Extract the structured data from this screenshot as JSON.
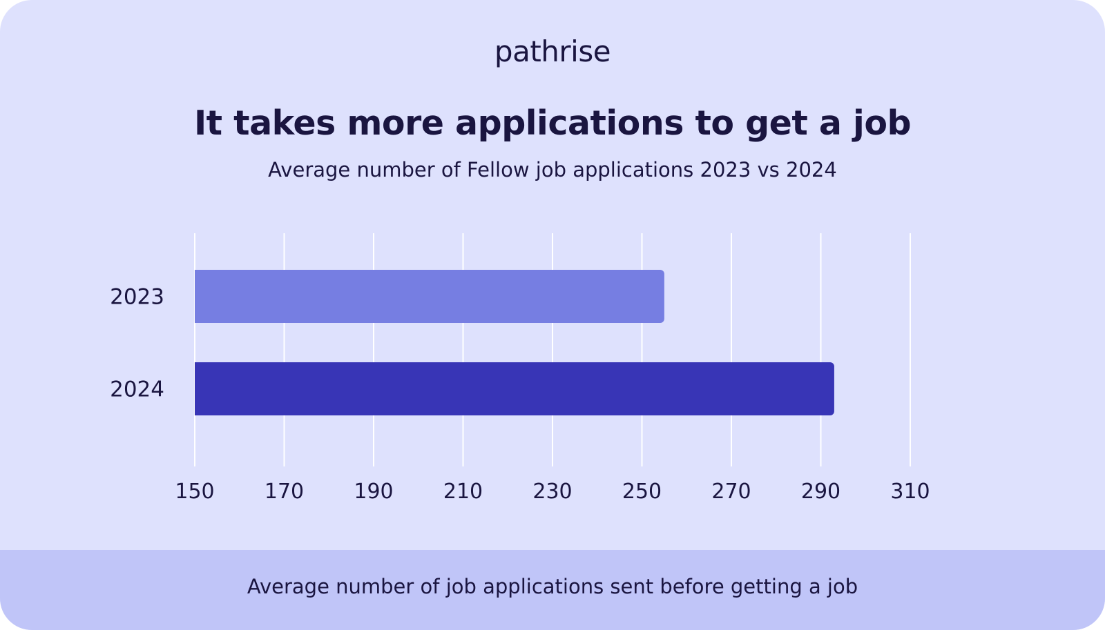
{
  "brand": {
    "logo_text": "pathrise"
  },
  "colors": {
    "background": "#dee1fd",
    "footer_background": "#c0c5f8",
    "text": "#1a1540",
    "gridline": "#ffffff",
    "bar_2023": "#767ee2",
    "bar_2024": "#3835b6"
  },
  "chart_data": {
    "type": "bar",
    "orientation": "horizontal",
    "title": "It takes more applications to get a job",
    "subtitle": "Average number of Fellow job applications 2023 vs 2024",
    "categories": [
      "2023",
      "2024"
    ],
    "values": [
      255,
      293
    ],
    "xlim": [
      150,
      310
    ],
    "xticks": [
      150,
      170,
      190,
      210,
      230,
      250,
      270,
      290,
      310
    ],
    "grid": true,
    "legend": "none",
    "caption": "Average number of job applications sent before getting a job"
  }
}
